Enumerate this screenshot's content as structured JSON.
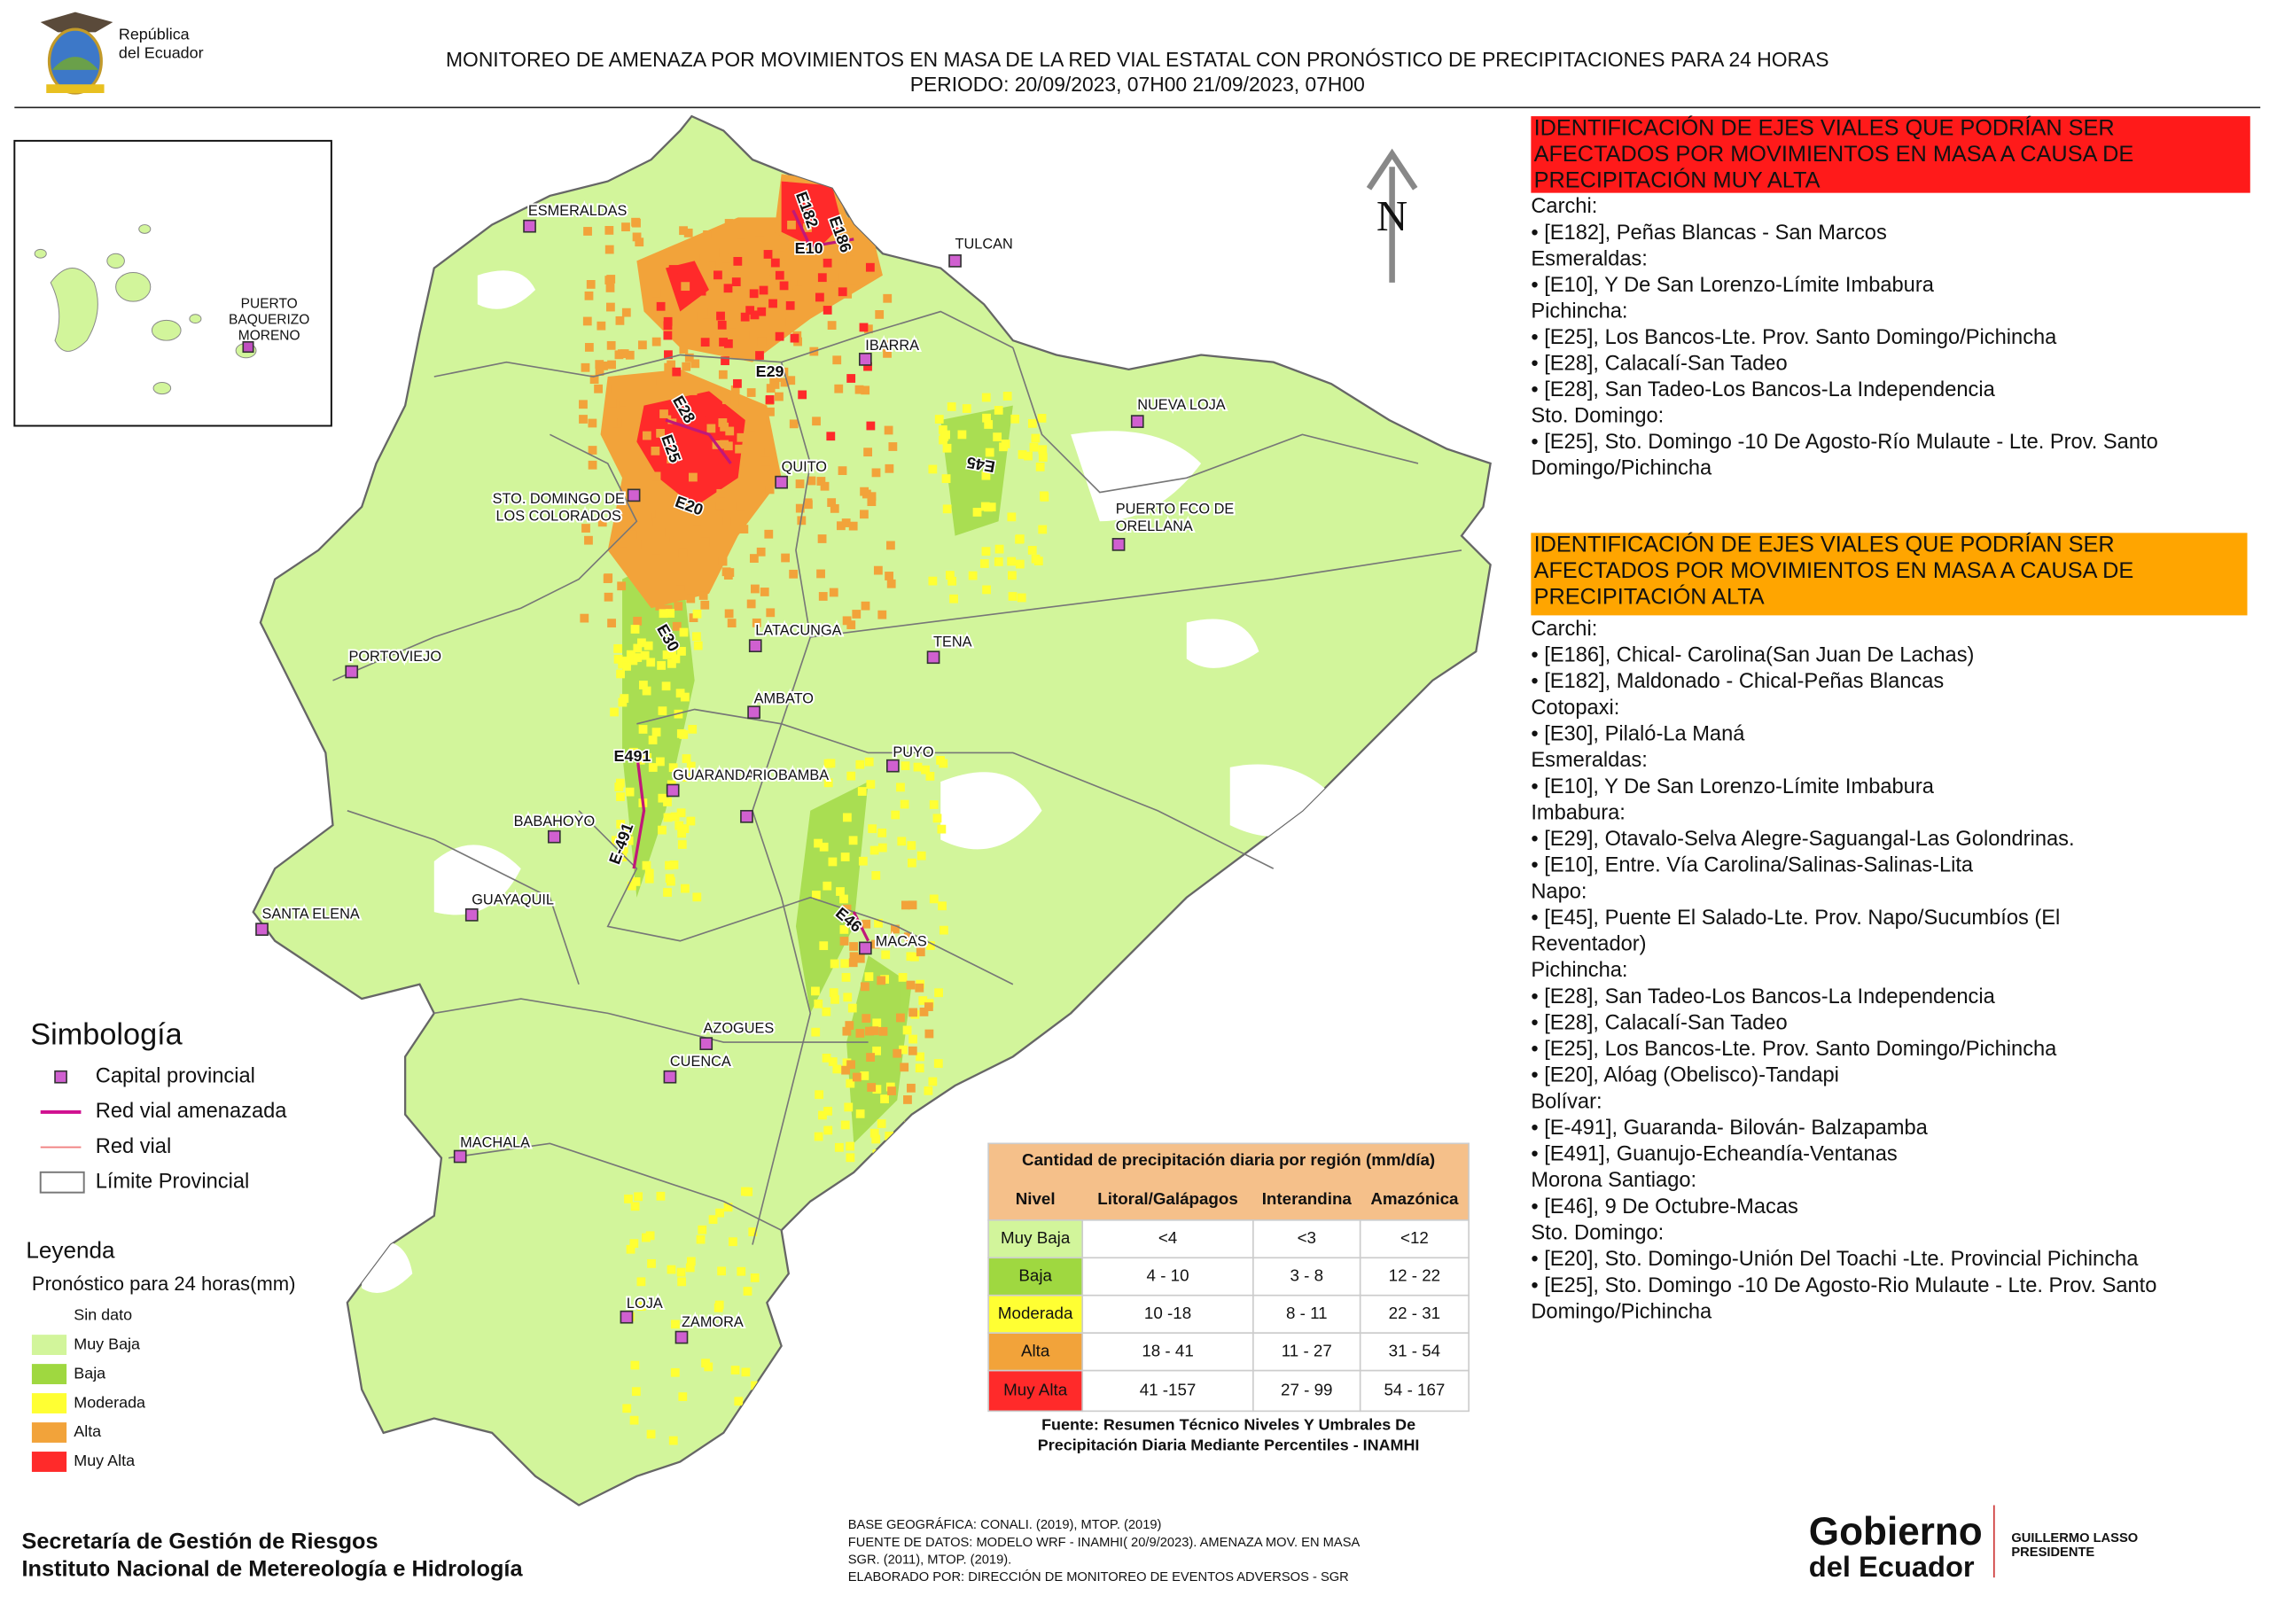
{
  "header": {
    "logo_text": [
      "República",
      "del Ecuador"
    ],
    "title": "MONITOREO DE AMENAZA POR MOVIMIENTOS EN MASA DE LA RED VIAL  ESTATAL  CON PRONÓSTICO  DE  PRECIPITACIONES PARA 24 HORAS",
    "period": "PERIODO: 20/09/2023, 07H00 21/09/2023, 07H00"
  },
  "map": {
    "north": "N",
    "inset_label": [
      "PUERTO",
      "BAQUERIZO",
      "MORENO"
    ],
    "cities": [
      [
        "ESMERALDAS"
      ],
      [
        "TULCAN"
      ],
      [
        "IBARRA"
      ],
      [
        "NUEVA LOJA"
      ],
      [
        "QUITO"
      ],
      [
        "STO. DOMINGO DE",
        "LOS COLORADOS"
      ],
      [
        "PUERTO FCO DE",
        "ORELLANA"
      ],
      [
        "PORTOVIEJO"
      ],
      [
        "LATACUNGA"
      ],
      [
        "TENA"
      ],
      [
        "AMBATO"
      ],
      [
        "PUYO"
      ],
      [
        "GUARANDA"
      ],
      [
        "RIOBAMBA"
      ],
      [
        "BABAHOYO"
      ],
      [
        "GUAYAQUIL"
      ],
      [
        "SANTA ELENA"
      ],
      [
        "MACAS"
      ],
      [
        "AZOGUES"
      ],
      [
        "CUENCA"
      ],
      [
        "MACHALA"
      ],
      [
        "LOJA"
      ],
      [
        "ZAMORA"
      ]
    ],
    "roads": [
      "E182",
      "E186",
      "E10",
      "E29",
      "E28",
      "E25",
      "E45",
      "E20",
      "E30",
      "E491",
      "E-491",
      "E46"
    ]
  },
  "panels": [
    {
      "title": [
        "IDENTIFICACIÓN DE EJES VIALES QUE PODRÍAN SER",
        "AFECTADOS POR MOVIMIENTOS EN MASA A CAUSA DE",
        "PRECIPITACIÓN MUY ALTA"
      ],
      "lines": [
        "Carchi:",
        "• [E182], Peñas Blancas - San Marcos",
        "Esmeraldas:",
        "• [E10], Y De San Lorenzo-Límite Imbabura",
        "Pichincha:",
        "• [E25], Los Bancos-Lte. Prov. Santo Domingo/Pichincha",
        "• [E28], Calacalí-San Tadeo",
        "• [E28], San Tadeo-Los Bancos-La Independencia",
        "Sto. Domingo:",
        "• [E25], Sto. Domingo -10 De Agosto-Río Mulaute - Lte. Prov. Santo",
        "Domingo/Pichincha"
      ]
    },
    {
      "title": [
        "IDENTIFICACIÓN DE EJES VIALES QUE PODRÍAN SER",
        "AFECTADOS POR MOVIMIENTOS EN MASA A CAUSA DE",
        "PRECIPITACIÓN  ALTA"
      ],
      "lines": [
        "Carchi:",
        "• [E186], Chical- Carolina(San Juan De Lachas)",
        "• [E182], Maldonado - Chical-Peñas Blancas",
        "Cotopaxi:",
        "• [E30], Pilaló-La Maná",
        "Esmeraldas:",
        "• [E10], Y De San Lorenzo-Límite Imbabura",
        "Imbabura:",
        "• [E29], Otavalo-Selva Alegre-Saguangal-Las Golondrinas.",
        "• [E10], Entre. Vía Carolina/Salinas-Salinas-Lita",
        "Napo:",
        "• [E45], Puente El Salado-Lte. Prov. Napo/Sucumbíos (El",
        "Reventador)",
        "Pichincha:",
        "• [E28], San Tadeo-Los Bancos-La Independencia",
        "• [E28], Calacalí-San Tadeo",
        "• [E25], Los Bancos-Lte. Prov. Santo Domingo/Pichincha",
        "• [E20], Alóag (Obelisco)-Tandapi",
        "Bolívar:",
        "• [E-491], Guaranda- Bilován- Balzapamba",
        "• [E491], Guanujo-Echeandía-Ventanas",
        "Morona Santiago:",
        "• [E46], 9 De Octubre-Macas",
        "Sto. Domingo:",
        "• [E20], Sto. Domingo-Unión Del Toachi -Lte. Provincial Pichincha",
        "• [E25], Sto. Domingo -10 De Agosto-Rio Mulaute - Lte. Prov. Santo",
        "Domingo/Pichincha"
      ]
    }
  ],
  "symbology": {
    "title": "Simbología",
    "items": [
      "Capital provincial",
      "Red vial amenazada",
      "Red vial",
      "Límite Provincial"
    ]
  },
  "legend": {
    "title": "Leyenda",
    "subtitle": "Pronóstico para 24 horas(mm)",
    "items": [
      {
        "label": "Sin dato",
        "color": "#ffffff"
      },
      {
        "label": "Muy Baja",
        "color": "#d2f59b"
      },
      {
        "label": "Baja",
        "color": "#9fd840"
      },
      {
        "label": "Moderada",
        "color": "#ffff33"
      },
      {
        "label": "Alta",
        "color": "#f2a33a"
      },
      {
        "label": "Muy Alta",
        "color": "#ff2a2a"
      }
    ]
  },
  "table": {
    "title": "Cantidad de precipitación diaria por región (mm/día)",
    "headers": [
      "Nivel",
      "Litoral/Galápagos",
      "Interandina",
      "Amazónica"
    ],
    "rows": [
      [
        "Muy Baja",
        "<4",
        "<3",
        "<12"
      ],
      [
        "Baja",
        "4 - 10",
        "3 - 8",
        "12 - 22"
      ],
      [
        "Moderada",
        "10 -18",
        "8 - 11",
        "22 - 31"
      ],
      [
        "Alta",
        "18 - 41",
        "11 - 27",
        "31 - 54"
      ],
      [
        "Muy Alta",
        "41 -157",
        "27 - 99",
        "54 - 167"
      ]
    ],
    "source": [
      "Fuente: Resumen Técnico Niveles Y Umbrales De",
      "Precipitación Diaria Mediante Percentiles - INAMHI"
    ]
  },
  "footer": {
    "org": [
      "Secretaría de Gestión de Riesgos",
      "Instituto Nacional de Metereología e Hidrología"
    ],
    "credits": [
      "BASE GEOGRÁFICA: CONALI. (2019), MTOP. (2019)",
      "FUENTE DE DATOS: MODELO WRF - INAMHI( 20/9/2023).  AMENAZA MOV. EN MASA",
      "SGR. (2011), MTOP. (2019).",
      "ELABORADO POR: DIRECCIÓN DE MONITOREO DE EVENTOS ADVERSOS - SGR"
    ],
    "brand": [
      "Gobierno",
      "del Ecuador"
    ],
    "president": [
      "GUILLERMO LASSO",
      "PRESIDENTE"
    ]
  }
}
